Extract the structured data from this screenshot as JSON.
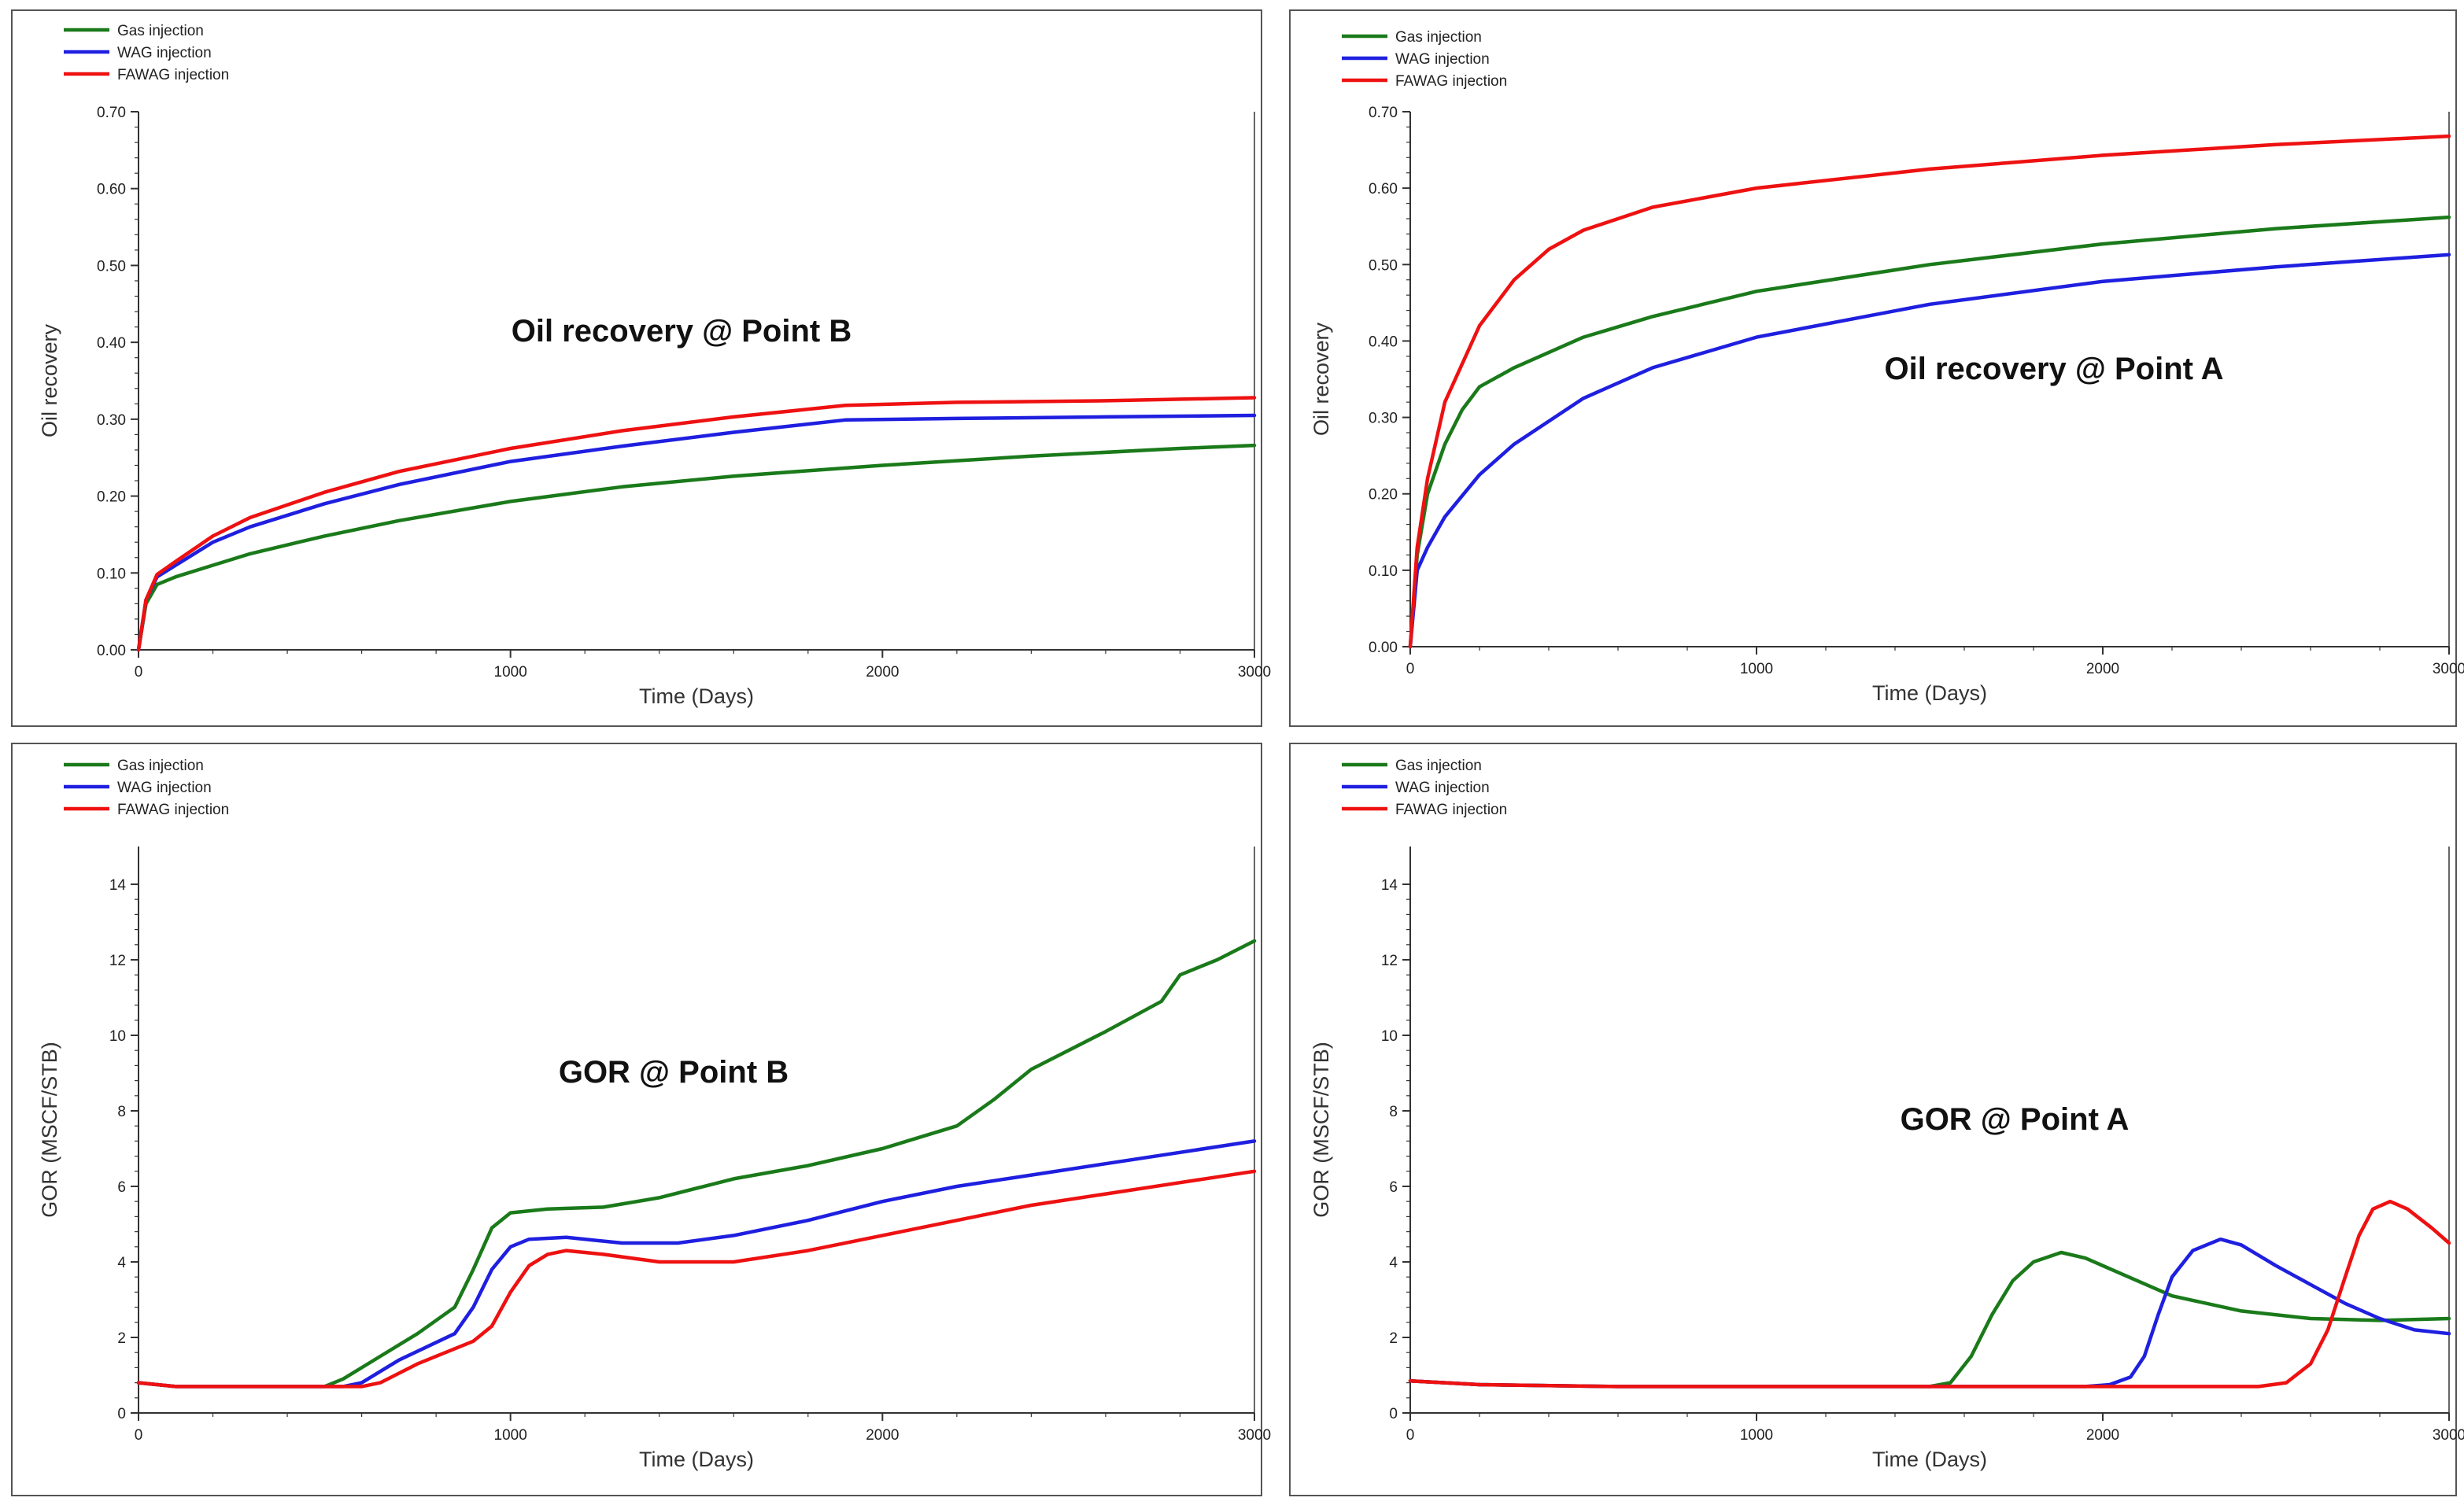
{
  "colors": {
    "gas": "#1a7a1a",
    "wag": "#1f1fe0",
    "fawag": "#ee1111",
    "axis": "#333333",
    "frame": "#555555"
  },
  "chart_data": [
    {
      "id": "oil-recovery-point-b",
      "type": "line",
      "title": "Oil recovery @ Point B",
      "xlabel": "Time (Days)",
      "ylabel": "Oil recovery",
      "xlim": [
        0,
        3000
      ],
      "ylim": [
        0,
        0.7
      ],
      "xticks": [
        0,
        1000,
        2000,
        3000
      ],
      "xtick_labels": [
        "0",
        "1000",
        "2000",
        "3000"
      ],
      "yticks": [
        0,
        0.1,
        0.2,
        0.3,
        0.4,
        0.5,
        0.6,
        0.7
      ],
      "ytick_labels": [
        "0.00",
        "0.10",
        "0.20",
        "0.30",
        "0.40",
        "0.50",
        "0.60",
        "0.70"
      ],
      "legend": [
        "Gas injection",
        "WAG injection",
        "FAWAG injection"
      ],
      "legend_position": "top-left",
      "series": [
        {
          "name": "Gas injection",
          "color_key": "gas",
          "x": [
            0,
            20,
            50,
            100,
            200,
            300,
            500,
            700,
            1000,
            1300,
            1600,
            2000,
            2400,
            2800,
            3000
          ],
          "y": [
            0,
            0.06,
            0.085,
            0.095,
            0.11,
            0.125,
            0.148,
            0.168,
            0.193,
            0.212,
            0.226,
            0.24,
            0.252,
            0.262,
            0.266
          ]
        },
        {
          "name": "WAG injection",
          "color_key": "wag",
          "x": [
            0,
            20,
            50,
            100,
            200,
            300,
            500,
            700,
            1000,
            1300,
            1600,
            1900,
            2200,
            2600,
            3000
          ],
          "y": [
            0,
            0.065,
            0.095,
            0.11,
            0.14,
            0.16,
            0.19,
            0.215,
            0.245,
            0.265,
            0.283,
            0.299,
            0.301,
            0.303,
            0.305
          ]
        },
        {
          "name": "FAWAG injection",
          "color_key": "fawag",
          "x": [
            0,
            20,
            50,
            100,
            200,
            300,
            500,
            700,
            1000,
            1300,
            1600,
            1900,
            2200,
            2600,
            3000
          ],
          "y": [
            0,
            0.065,
            0.098,
            0.115,
            0.148,
            0.172,
            0.205,
            0.232,
            0.262,
            0.285,
            0.303,
            0.318,
            0.322,
            0.324,
            0.328
          ]
        }
      ]
    },
    {
      "id": "oil-recovery-point-a",
      "type": "line",
      "title": "Oil recovery @ Point A",
      "xlabel": "Time (Days)",
      "ylabel": "Oil recovery",
      "xlim": [
        0,
        3000
      ],
      "ylim": [
        0,
        0.7
      ],
      "xticks": [
        0,
        1000,
        2000,
        3000
      ],
      "xtick_labels": [
        "0",
        "1000",
        "2000",
        "3000"
      ],
      "yticks": [
        0,
        0.1,
        0.2,
        0.3,
        0.4,
        0.5,
        0.6,
        0.7
      ],
      "ytick_labels": [
        "0.00",
        "0.10",
        "0.20",
        "0.30",
        "0.40",
        "0.50",
        "0.60",
        "0.70"
      ],
      "legend": [
        "Gas injection",
        "WAG injection",
        "FAWAG injection"
      ],
      "legend_position": "top-left",
      "series": [
        {
          "name": "Gas injection",
          "color_key": "gas",
          "x": [
            0,
            20,
            50,
            100,
            150,
            200,
            300,
            500,
            700,
            1000,
            1500,
            2000,
            2500,
            3000
          ],
          "y": [
            0,
            0.12,
            0.2,
            0.265,
            0.31,
            0.34,
            0.365,
            0.405,
            0.432,
            0.465,
            0.5,
            0.527,
            0.547,
            0.562
          ]
        },
        {
          "name": "WAG injection",
          "color_key": "wag",
          "x": [
            0,
            20,
            50,
            100,
            200,
            300,
            500,
            700,
            1000,
            1500,
            2000,
            2500,
            3000
          ],
          "y": [
            0,
            0.1,
            0.13,
            0.17,
            0.225,
            0.265,
            0.325,
            0.365,
            0.405,
            0.448,
            0.478,
            0.497,
            0.513
          ]
        },
        {
          "name": "FAWAG injection",
          "color_key": "fawag",
          "x": [
            0,
            20,
            50,
            100,
            200,
            300,
            400,
            500,
            700,
            1000,
            1500,
            2000,
            2500,
            3000
          ],
          "y": [
            0,
            0.13,
            0.22,
            0.32,
            0.42,
            0.48,
            0.52,
            0.545,
            0.575,
            0.6,
            0.625,
            0.643,
            0.657,
            0.668
          ]
        }
      ]
    },
    {
      "id": "gor-point-b",
      "type": "line",
      "title": "GOR @ Point B",
      "xlabel": "Time (Days)",
      "ylabel": "GOR (MSCF/STB)",
      "xlim": [
        0,
        3000
      ],
      "ylim": [
        0,
        15
      ],
      "xticks": [
        0,
        1000,
        2000,
        3000
      ],
      "xtick_labels": [
        "0",
        "1000",
        "2000",
        "3000"
      ],
      "yticks": [
        0,
        2,
        4,
        6,
        8,
        10,
        12,
        14
      ],
      "ytick_labels": [
        "0",
        "2",
        "4",
        "6",
        "8",
        "10",
        "12",
        "14"
      ],
      "legend": [
        "Gas injection",
        "WAG injection",
        "FAWAG injection"
      ],
      "legend_position": "top-left",
      "series": [
        {
          "name": "Gas injection",
          "color_key": "gas",
          "x": [
            0,
            100,
            300,
            500,
            550,
            650,
            750,
            850,
            900,
            950,
            1000,
            1100,
            1250,
            1400,
            1600,
            1800,
            2000,
            2200,
            2300,
            2400,
            2600,
            2750,
            2800,
            2900,
            3000
          ],
          "y": [
            0.8,
            0.7,
            0.7,
            0.7,
            0.9,
            1.5,
            2.1,
            2.8,
            3.8,
            4.9,
            5.3,
            5.4,
            5.45,
            5.7,
            6.2,
            6.55,
            7.0,
            7.6,
            8.3,
            9.1,
            10.1,
            10.9,
            11.6,
            12.0,
            12.5
          ]
        },
        {
          "name": "WAG injection",
          "color_key": "wag",
          "x": [
            0,
            100,
            300,
            550,
            600,
            700,
            850,
            900,
            950,
            1000,
            1050,
            1150,
            1300,
            1450,
            1600,
            1800,
            2000,
            2200,
            2400,
            2600,
            2800,
            3000
          ],
          "y": [
            0.8,
            0.7,
            0.7,
            0.7,
            0.8,
            1.4,
            2.1,
            2.8,
            3.8,
            4.4,
            4.6,
            4.65,
            4.5,
            4.5,
            4.7,
            5.1,
            5.6,
            6.0,
            6.3,
            6.6,
            6.9,
            7.2
          ]
        },
        {
          "name": "FAWAG injection",
          "color_key": "fawag",
          "x": [
            0,
            100,
            300,
            600,
            650,
            750,
            900,
            950,
            1000,
            1050,
            1100,
            1150,
            1250,
            1400,
            1600,
            1800,
            2000,
            2200,
            2400,
            2600,
            2800,
            3000
          ],
          "y": [
            0.8,
            0.7,
            0.7,
            0.7,
            0.8,
            1.3,
            1.9,
            2.3,
            3.2,
            3.9,
            4.2,
            4.3,
            4.2,
            4.0,
            4.0,
            4.3,
            4.7,
            5.1,
            5.5,
            5.8,
            6.1,
            6.4
          ]
        }
      ]
    },
    {
      "id": "gor-point-a",
      "type": "line",
      "title": "GOR @ Point A",
      "xlabel": "Time (Days)",
      "ylabel": "GOR (MSCF/STB)",
      "xlim": [
        0,
        3000
      ],
      "ylim": [
        0,
        15
      ],
      "xticks": [
        0,
        1000,
        2000,
        3000
      ],
      "xtick_labels": [
        "0",
        "1000",
        "2000",
        "3000"
      ],
      "yticks": [
        0,
        2,
        4,
        6,
        8,
        10,
        12,
        14
      ],
      "ytick_labels": [
        "0",
        "2",
        "4",
        "6",
        "8",
        "10",
        "12",
        "14"
      ],
      "legend": [
        "Gas injection",
        "WAG injection",
        "FAWAG injection"
      ],
      "legend_position": "top-left",
      "series": [
        {
          "name": "Gas injection",
          "color_key": "gas",
          "x": [
            0,
            200,
            600,
            1500,
            1560,
            1620,
            1680,
            1740,
            1800,
            1880,
            1950,
            2050,
            2200,
            2400,
            2600,
            2800,
            3000
          ],
          "y": [
            0.85,
            0.75,
            0.7,
            0.7,
            0.8,
            1.5,
            2.6,
            3.5,
            4.0,
            4.25,
            4.1,
            3.7,
            3.1,
            2.7,
            2.5,
            2.45,
            2.5
          ]
        },
        {
          "name": "WAG injection",
          "color_key": "wag",
          "x": [
            0,
            200,
            600,
            1950,
            2020,
            2080,
            2120,
            2160,
            2200,
            2260,
            2340,
            2400,
            2500,
            2600,
            2700,
            2800,
            2900,
            3000
          ],
          "y": [
            0.85,
            0.75,
            0.7,
            0.7,
            0.75,
            0.95,
            1.5,
            2.6,
            3.6,
            4.3,
            4.6,
            4.45,
            3.9,
            3.4,
            2.9,
            2.5,
            2.2,
            2.1
          ]
        },
        {
          "name": "FAWAG injection",
          "color_key": "fawag",
          "x": [
            0,
            200,
            600,
            2450,
            2530,
            2600,
            2650,
            2700,
            2740,
            2780,
            2830,
            2880,
            2950,
            3000
          ],
          "y": [
            0.85,
            0.75,
            0.7,
            0.7,
            0.8,
            1.3,
            2.2,
            3.6,
            4.7,
            5.4,
            5.6,
            5.4,
            4.9,
            4.5
          ]
        }
      ]
    }
  ]
}
